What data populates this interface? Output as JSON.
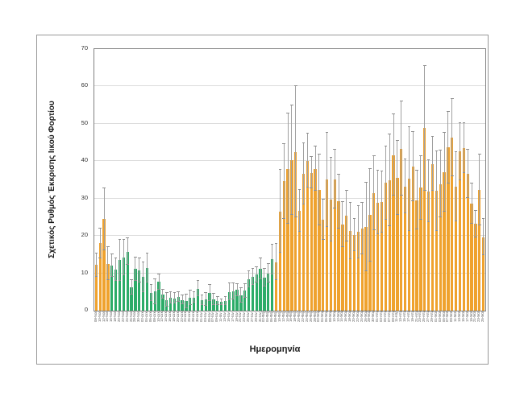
{
  "figure": {
    "background": "#ffffff",
    "frame_border_color": "#999999"
  },
  "chart_data": {
    "type": "bar",
    "title": "",
    "xlabel": "Ημερομηνία",
    "ylabel": "Σχετικός Ρυθμός Έκκρισης Ιικού Φορτίου",
    "ylim": [
      0,
      70
    ],
    "yticks": [
      0,
      10,
      20,
      30,
      40,
      50,
      60,
      70
    ],
    "grid": true,
    "legend": false,
    "error_bars_shown": true,
    "categories": [
      "08-Νοε",
      "10-Νοε",
      "12-Νοε",
      "14-Νοε",
      "16-Νοε",
      "18-Νοε",
      "20-Νοε",
      "22-Νοε",
      "24-Νοε",
      "26-Νοε",
      "28-Νοε",
      "30-Νοε",
      "02-Δεκ",
      "04-Δεκ",
      "06-Δεκ",
      "08-Δεκ",
      "10-Δεκ",
      "12-Δεκ",
      "14-Δεκ",
      "16-Δεκ",
      "18-Δεκ",
      "20-Δεκ",
      "22-Δεκ",
      "24-Δεκ",
      "26-Δεκ",
      "28-Δεκ",
      "30-Δεκ",
      "01-Ιαν",
      "03-Ιαν",
      "05-Ιαν",
      "07-Ιαν",
      "09-Ιαν",
      "11-Ιαν",
      "13-Ιαν",
      "15-Ιαν",
      "17-Ιαν",
      "19-Ιαν",
      "21-Ιαν",
      "23-Ιαν",
      "25-Ιαν",
      "27-Ιαν",
      "29-Ιαν",
      "31-Ιαν",
      "02-Φεβ",
      "04-Φεβ",
      "06-Φεβ",
      "08-Φεβ",
      "10-Φεβ",
      "12-Φεβ",
      "14-Φεβ",
      "16-Φεβ",
      "18-Φεβ",
      "20-Φεβ",
      "22-Φεβ",
      "24-Φεβ",
      "26-Φεβ",
      "28-Φεβ",
      "02-Μαρ",
      "04-Μαρ",
      "06-Μαρ",
      "08-Μαρ",
      "10-Μαρ",
      "12-Μαρ",
      "14-Μαρ",
      "16-Μαρ",
      "18-Μαρ",
      "20-Μαρ",
      "22-Μαρ",
      "24-Μαρ",
      "26-Μαρ",
      "28-Μαρ",
      "30-Μαρ",
      "01-Απρ",
      "03-Απρ",
      "05-Απρ",
      "07-Απρ",
      "09-Απρ",
      "11-Απρ",
      "13-Απρ",
      "15-Απρ",
      "17-Απρ",
      "19-Απρ",
      "21-Απρ",
      "23-Απρ",
      "25-Απρ",
      "27-Απρ",
      "29-Απρ",
      "01-Μαϊ",
      "03-Μαϊ",
      "05-Μαϊ",
      "07-Μαϊ",
      "09-Μαϊ",
      "11-Μαϊ",
      "13-Μαϊ",
      "15-Μαϊ",
      "17-Μαϊ",
      "19-Μαϊ",
      "21-Μαϊ",
      "23-Μαϊ",
      "25-Μαϊ"
    ],
    "values": [
      12.2,
      18,
      24.5,
      12.6,
      12,
      10.9,
      13.5,
      14.2,
      15.8,
      6.2,
      11.1,
      10.7,
      9,
      11.5,
      4.7,
      5.1,
      7.7,
      4.4,
      2.9,
      3.4,
      3.3,
      3.7,
      2.9,
      2.5,
      3.4,
      3.5,
      5.9,
      2.8,
      3.1,
      4.8,
      3,
      2.6,
      2.3,
      2.6,
      5,
      5.2,
      5.5,
      4.1,
      5.3,
      8.4,
      9,
      9.6,
      11.2,
      8.8,
      10,
      13.7,
      13,
      26.6,
      34.6,
      38,
      40.3,
      42.5,
      26.7,
      36.6,
      40.1,
      36.9,
      38,
      32.3,
      24.3,
      35.1,
      29.8,
      35.2,
      29.2,
      23,
      25.4,
      21.3,
      20.3,
      21.1,
      21.9,
      22.4,
      25.6,
      31.4,
      28.9,
      29.1,
      34.2,
      34.9,
      41.6,
      35.5,
      43.4,
      33.2,
      35.3,
      38.6,
      29.6,
      32.9,
      48.8,
      31.9,
      39.3,
      32,
      33.9,
      37.1,
      43.7,
      46.3,
      33.2,
      42.6,
      43.5,
      36.6,
      28.6,
      23.2,
      32.3,
      19.7
    ],
    "errors": [
      3.2,
      4,
      8.3,
      4.4,
      3,
      3,
      5.5,
      4.8,
      3.6,
      1.9,
      3.1,
      3.2,
      4,
      3.9,
      2.1,
      3.4,
      2,
      1.1,
      1.9,
      1.5,
      1.4,
      1.3,
      1.1,
      1.8,
      1.9,
      1.4,
      2.1,
      1.2,
      1.7,
      2.2,
      1.5,
      1,
      0.8,
      1.1,
      2.3,
      2.2,
      1.6,
      2,
      1.8,
      2.2,
      2.1,
      2,
      2.8,
      2.3,
      2.5,
      4,
      4.9,
      11,
      10,
      14.8,
      14.7,
      17.6,
      5.6,
      8.2,
      7.2,
      4.2,
      5.9,
      9.5,
      5.4,
      12.6,
      11.2,
      7.9,
      7.2,
      6,
      6.8,
      7.5,
      4.3,
      7,
      6.9,
      11.8,
      12.4,
      9.9,
      8.5,
      8.1,
      9.8,
      12.3,
      10.9,
      9.9,
      12.6,
      7.2,
      13.9,
      9.2,
      7.8,
      8.5,
      16.7,
      8.3,
      7.2,
      10.7,
      8.9,
      10.5,
      9.6,
      10.4,
      9.3,
      7.6,
      6.7,
      6.5,
      5.4,
      3.6,
      9.5,
      4.9
    ],
    "segments": [
      {
        "from": 0,
        "count": 4,
        "color_key": "orange"
      },
      {
        "from": 4,
        "count": 42,
        "color_key": "green"
      },
      {
        "from": 46,
        "count": 54,
        "color_key": "orange"
      }
    ],
    "colors": {
      "orange": "#EFA22E",
      "green": "#2CAC68",
      "error_bar": "#A0A0A0",
      "gridline": "#DCDCDC",
      "axis_line": "#808080",
      "tick_text": "#333333"
    }
  }
}
